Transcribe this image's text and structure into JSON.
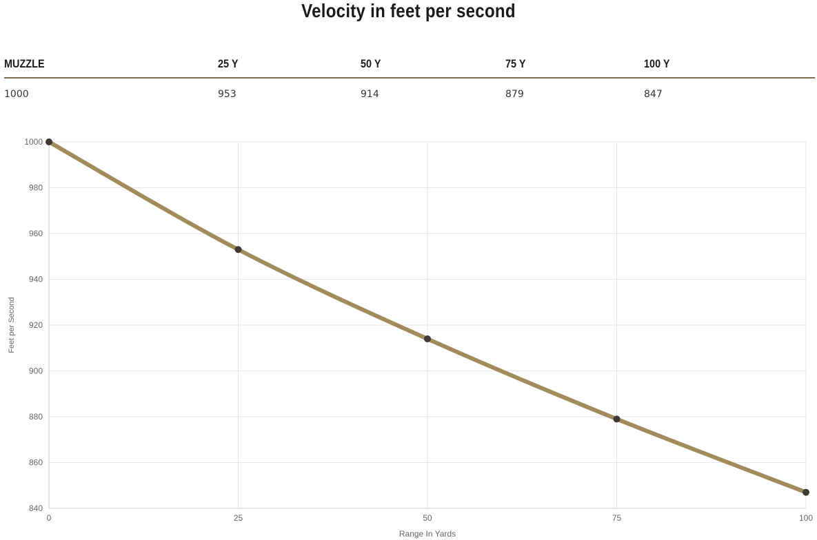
{
  "title": "Velocity in feet per second",
  "table": {
    "headers": [
      "MUZZLE",
      "25 Y",
      "50 Y",
      "75 Y",
      "100 Y"
    ],
    "values": [
      "1000",
      "953",
      "914",
      "879",
      "847"
    ]
  },
  "chart_data": {
    "type": "line",
    "x": [
      0,
      25,
      50,
      75,
      100
    ],
    "series": [
      {
        "values": [
          1000,
          953,
          914,
          879,
          847
        ]
      }
    ],
    "xlabel": "Range In Yards",
    "ylabel": "Feet per Second",
    "xlim": [
      0,
      100
    ],
    "ylim": [
      840,
      1000
    ],
    "xticks": [
      0,
      25,
      50,
      75,
      100
    ],
    "yticks": [
      840,
      860,
      880,
      900,
      920,
      940,
      960,
      980,
      1000
    ],
    "grid": true,
    "line_color": "#a08c5b",
    "point_color": "#3d3a35"
  }
}
